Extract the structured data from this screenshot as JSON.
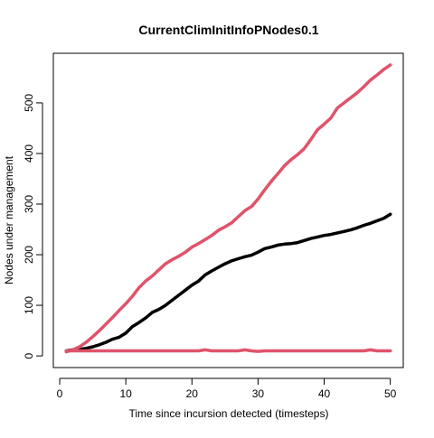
{
  "chart_data": {
    "type": "line",
    "title": "CurrentClimInitInfoPNodes0.1",
    "xlabel": "Time since incursion detected (timesteps)",
    "ylabel": "Nodes under management",
    "xlim": [
      1,
      50
    ],
    "ylim": [
      0,
      575
    ],
    "xticks": [
      0,
      10,
      20,
      30,
      40,
      50
    ],
    "yticks": [
      0,
      100,
      200,
      300,
      400,
      500
    ],
    "grid": false,
    "legend": null,
    "x": [
      1,
      2,
      3,
      4,
      5,
      6,
      7,
      8,
      9,
      10,
      11,
      12,
      13,
      14,
      15,
      16,
      17,
      18,
      19,
      20,
      21,
      22,
      23,
      24,
      25,
      26,
      27,
      28,
      29,
      30,
      31,
      32,
      33,
      34,
      35,
      36,
      37,
      38,
      39,
      40,
      41,
      42,
      43,
      44,
      45,
      46,
      47,
      48,
      49,
      50
    ],
    "series": [
      {
        "color": "#000000",
        "values": [
          10,
          12,
          13,
          15,
          18,
          22,
          27,
          33,
          37,
          45,
          58,
          66,
          75,
          86,
          92,
          100,
          110,
          120,
          130,
          140,
          148,
          160,
          168,
          175,
          182,
          188,
          192,
          196,
          199,
          205,
          212,
          215,
          219,
          221,
          222,
          224,
          228,
          232,
          235,
          238,
          240,
          243,
          246,
          249,
          253,
          258,
          262,
          267,
          272,
          280
        ]
      },
      {
        "color": "#DF536B",
        "values": [
          8,
          12,
          18,
          27,
          38,
          50,
          63,
          76,
          90,
          103,
          118,
          135,
          148,
          158,
          170,
          182,
          190,
          197,
          205,
          215,
          222,
          230,
          238,
          248,
          255,
          263,
          275,
          287,
          295,
          310,
          328,
          345,
          360,
          376,
          388,
          398,
          410,
          428,
          447,
          458,
          470,
          490,
          500,
          510,
          520,
          532,
          545,
          555,
          566,
          575
        ]
      },
      {
        "color": "#DF536B",
        "values": [
          10,
          10,
          10,
          10,
          10,
          10,
          10,
          10,
          10,
          10,
          10,
          10,
          10,
          10,
          10,
          10,
          10,
          10,
          10,
          10,
          10,
          12,
          10,
          10,
          10,
          10,
          10,
          12,
          10,
          9,
          10,
          10,
          10,
          10,
          10,
          10,
          10,
          10,
          10,
          10,
          10,
          10,
          10,
          10,
          10,
          10,
          12,
          10,
          10,
          10
        ]
      }
    ]
  }
}
